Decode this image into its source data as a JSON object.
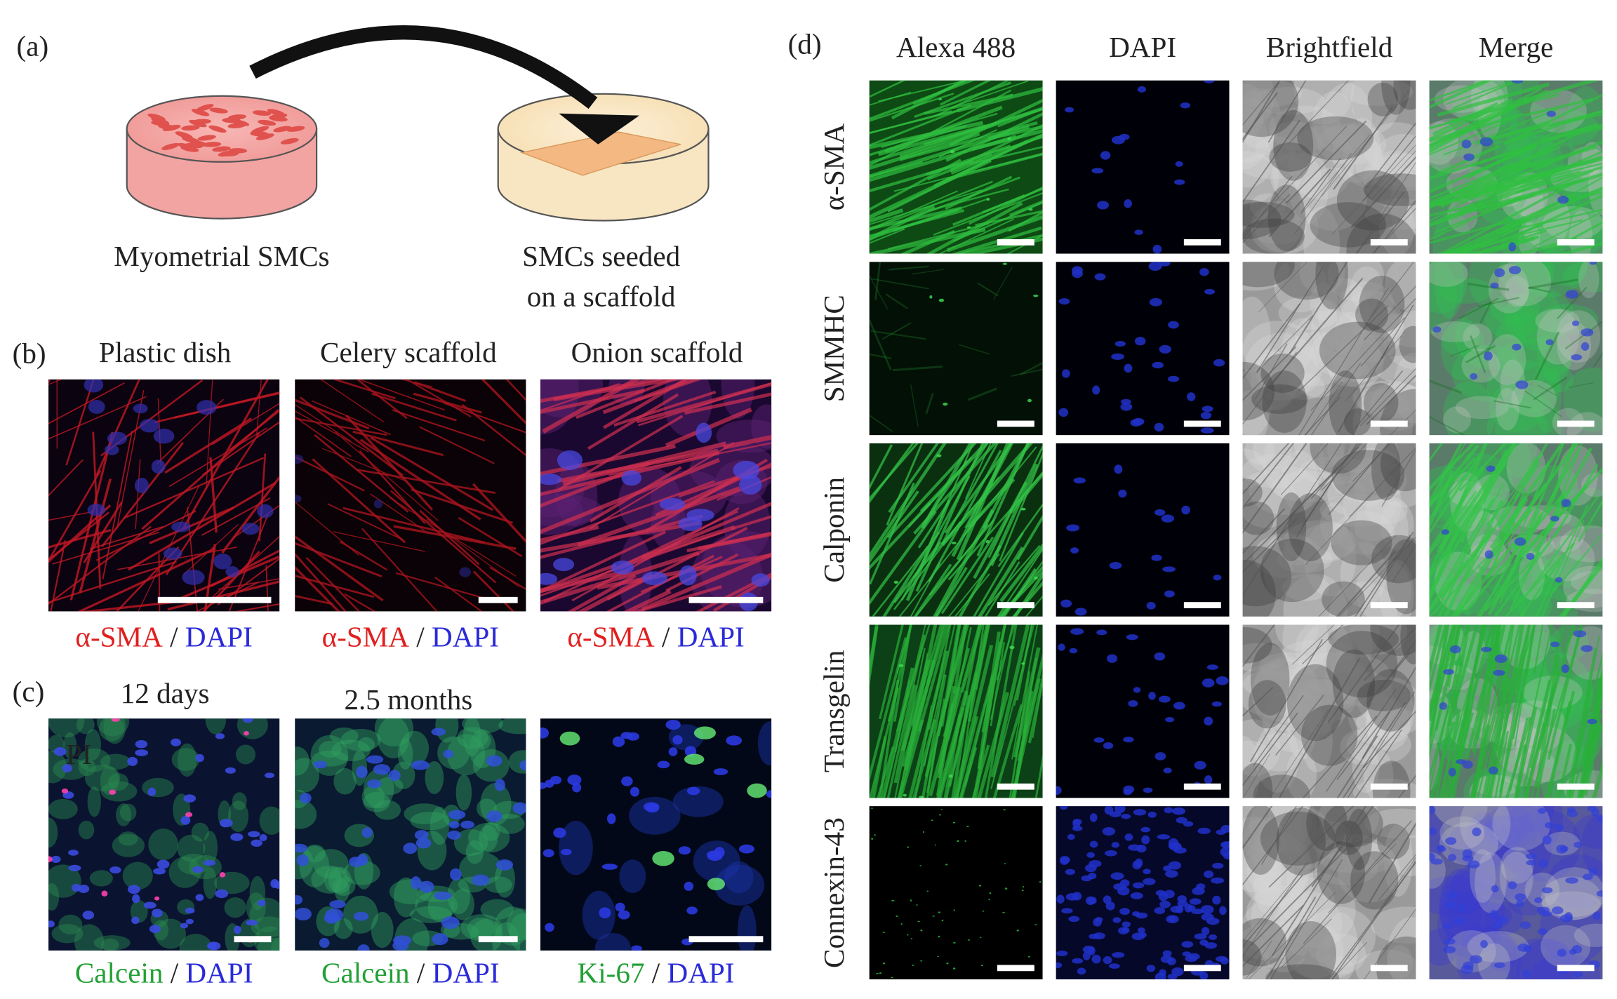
{
  "panel_a": {
    "label": "(a)",
    "source_label": "Myometrial SMCs",
    "target_label": [
      "SMCs seeded",
      "on a scaffold"
    ]
  },
  "panel_b": {
    "label": "(b)",
    "headers": [
      "Plastic dish",
      "Celery scaffold",
      "Onion scaffold"
    ],
    "captions": [
      {
        "stain": "α-SMA",
        "sep": "/",
        "counter": "DAPI"
      },
      {
        "stain": "α-SMA",
        "sep": "/",
        "counter": "DAPI"
      },
      {
        "stain": "α-SMA",
        "sep": "/",
        "counter": "DAPI"
      }
    ]
  },
  "panel_c": {
    "label": "(c)",
    "headers": [
      "12 days",
      "2.5 months"
    ],
    "overlay": "PI",
    "captions": [
      {
        "stain": "Calcein",
        "sep": "/",
        "counter": "DAPI"
      },
      {
        "stain": "Calcein",
        "sep": "/",
        "counter": "DAPI"
      },
      {
        "stain": "Ki-67",
        "sep": "/",
        "counter": "DAPI"
      }
    ]
  },
  "panel_d": {
    "label": "(d)",
    "columns": [
      "Alexa 488",
      "DAPI",
      "Brightfield",
      "Merge"
    ],
    "rows": [
      "α-SMA",
      "SMMHC",
      "Calponin",
      "Transgelin",
      "Connexin-43"
    ]
  }
}
